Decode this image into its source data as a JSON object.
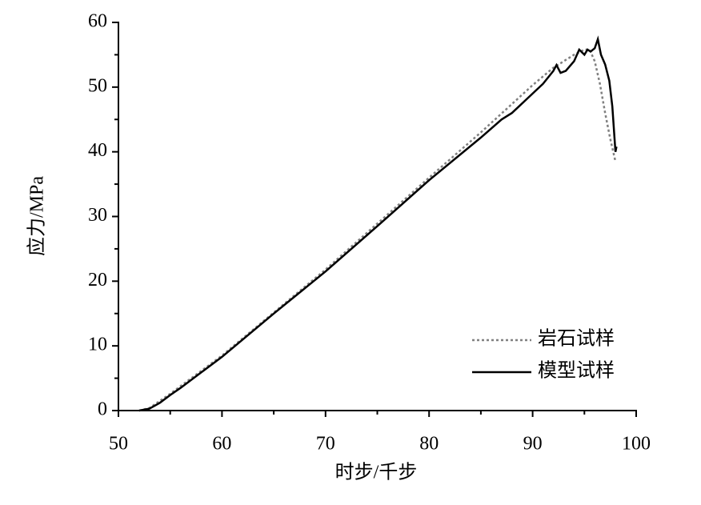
{
  "chart_data": {
    "type": "line",
    "xlabel": "时步/千步",
    "ylabel": "应力/MPa",
    "xlim": [
      50,
      100
    ],
    "ylim": [
      0,
      60
    ],
    "xticks": [
      50,
      60,
      70,
      80,
      90,
      100
    ],
    "yticks": [
      0,
      10,
      20,
      30,
      40,
      50,
      60
    ],
    "xticks_minor": [
      55,
      65,
      75,
      85,
      95
    ],
    "yticks_minor": [
      5,
      15,
      25,
      35,
      45,
      55
    ],
    "legend": "lower right",
    "series": [
      {
        "name": "岩石试样",
        "color": "#808080",
        "dash": true,
        "x": [
          52,
          53,
          55,
          60,
          70,
          80,
          85,
          90,
          92,
          94,
          95,
          95.5,
          96,
          96.5,
          97,
          97.5,
          98
        ],
        "values": [
          0,
          0.4,
          2.6,
          8.5,
          21.8,
          36,
          43,
          50.3,
          53,
          55,
          55.8,
          55.8,
          54,
          50.5,
          46,
          42,
          38.5
        ]
      },
      {
        "name": "模型试样",
        "color": "#000000",
        "dash": false,
        "x": [
          52,
          53,
          54,
          55,
          56,
          58,
          60,
          65,
          70,
          75,
          80,
          85,
          87,
          88,
          90,
          91,
          92,
          92.3,
          92.7,
          93.2,
          94,
          94.5,
          95,
          95.3,
          95.6,
          96,
          96.3,
          96.6,
          97,
          97.4,
          97.7,
          98,
          98.1
        ],
        "values": [
          0,
          0.3,
          1.2,
          2.4,
          3.5,
          5.9,
          8.3,
          15,
          21.5,
          28.5,
          35.6,
          42.2,
          45,
          46,
          49,
          50.5,
          52.5,
          53.4,
          52.2,
          52.5,
          54,
          55.8,
          55,
          55.8,
          55.5,
          56,
          57.4,
          55,
          53.5,
          51,
          47,
          40,
          40.8
        ]
      }
    ]
  }
}
